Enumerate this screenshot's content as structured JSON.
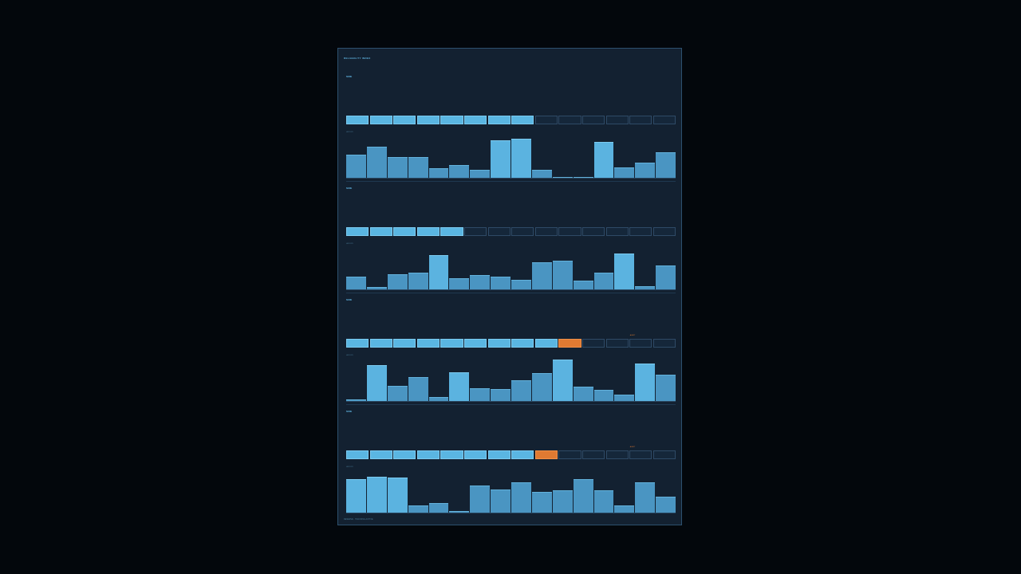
{
  "panel": {
    "title": "RELIABILITY INDEX",
    "footer": "RESERVE · TRACKING ACTIVE"
  },
  "colors": {
    "background": "#03070c",
    "panel": "#132131",
    "segment_on": "#5ab6e2",
    "segment_off": "#15273a",
    "segment_alert": "#e07a32",
    "bar": "#4a95c2",
    "bar_highlight": "#5bb3e0"
  },
  "chart_data": [
    {
      "type": "bar",
      "label": "NODE",
      "meter": {
        "segments": 14,
        "filled": 8,
        "alert_index": null,
        "alert_label": ""
      },
      "bars_label": "HISTORY",
      "values": [
        28,
        38,
        25,
        25,
        12,
        16,
        10,
        46,
        48,
        10,
        1,
        1,
        44,
        13,
        18,
        31
      ],
      "highlight": [
        7,
        8,
        12
      ]
    },
    {
      "type": "bar",
      "label": "NODE",
      "meter": {
        "segments": 14,
        "filled": 5,
        "alert_index": null,
        "alert_label": ""
      },
      "bars_label": "HISTORY",
      "values": [
        16,
        3,
        18,
        20,
        42,
        14,
        17,
        16,
        12,
        33,
        35,
        11,
        20,
        44,
        4,
        29
      ],
      "highlight": [
        4,
        13
      ]
    },
    {
      "type": "bar",
      "label": "NODE",
      "meter": {
        "segments": 14,
        "filled": 9,
        "alert_index": 9,
        "alert_label": "ALERT"
      },
      "bars_label": "HISTORY",
      "values": [
        2,
        44,
        18,
        29,
        5,
        35,
        16,
        15,
        25,
        34,
        50,
        17,
        14,
        8,
        46,
        32
      ],
      "highlight": [
        1,
        5,
        10,
        14
      ]
    },
    {
      "type": "bar",
      "label": "NODE",
      "meter": {
        "segments": 14,
        "filled": 8,
        "alert_index": 8,
        "alert_label": "ALERT"
      },
      "bars_label": "HISTORY",
      "values": [
        41,
        44,
        43,
        9,
        12,
        2,
        33,
        28,
        37,
        25,
        27,
        41,
        27,
        9,
        37,
        19
      ],
      "highlight": [
        0,
        1,
        2
      ]
    }
  ]
}
